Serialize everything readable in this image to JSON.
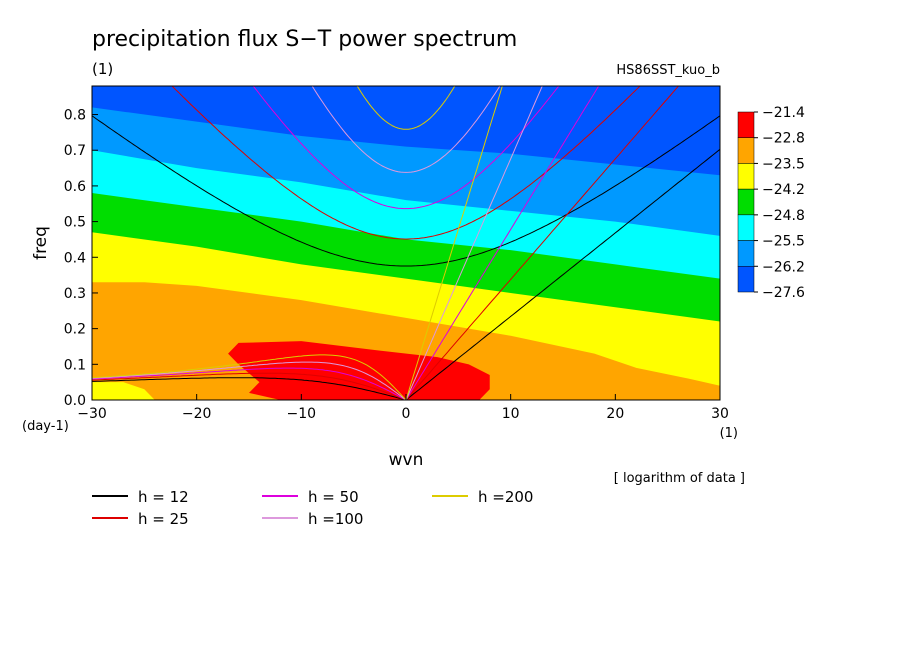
{
  "chart_data": {
    "type": "heatmap",
    "title": "precipitation flux S−T power spectrum",
    "subtitle_left": "(1)",
    "subtitle_right": "HS86SST_kuo_b",
    "xlabel": "wvn",
    "ylabel": "freq",
    "x_unit": "(1)",
    "y_unit": "(day-1)",
    "note": "[ logarithm of data ]",
    "xlim": [
      -30,
      30
    ],
    "ylim": [
      0.0,
      0.88
    ],
    "x_ticks": [
      -30,
      -20,
      -10,
      0,
      10,
      20,
      30
    ],
    "x_tick_labels": [
      "−30",
      "−20",
      "−10",
      "0",
      "10",
      "20",
      "30"
    ],
    "y_ticks": [
      0.0,
      0.1,
      0.2,
      0.3,
      0.4,
      0.5,
      0.6,
      0.7,
      0.8
    ],
    "y_tick_labels": [
      "0.0",
      "0.1",
      "0.2",
      "0.3",
      "0.4",
      "0.5",
      "0.6",
      "0.7",
      "0.8"
    ],
    "colorbar": {
      "levels": [
        "−21.4",
        "−22.8",
        "−23.5",
        "−24.2",
        "−24.8",
        "−25.5",
        "−26.2",
        "−27.6"
      ],
      "colors": [
        "#ff0000",
        "#ffa500",
        "#ffff00",
        "#00dd00",
        "#00ffff",
        "#0099ff",
        "#0055ff"
      ]
    },
    "dispersion_curves": [
      {
        "label": "h = 12",
        "h": 12,
        "color": "#000000"
      },
      {
        "label": "h = 25",
        "h": 25,
        "color": "#dd0000"
      },
      {
        "label": "h = 50",
        "h": 50,
        "color": "#dd00dd"
      },
      {
        "label": "h =100",
        "h": 100,
        "color": "#dd99dd"
      },
      {
        "label": "h =200",
        "h": 200,
        "color": "#ddcc00"
      }
    ]
  }
}
